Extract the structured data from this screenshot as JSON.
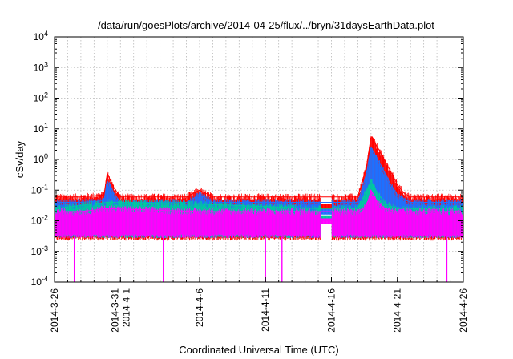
{
  "chart_data": {
    "type": "line",
    "title": "/data/run/goesPlots/archive/2014-04-25/flux/../bryn/31daysEarthData.plot",
    "xlabel": "Coordinated Universal Time (UTC)",
    "ylabel": "cSv/day",
    "yscale": "log",
    "xlim": [
      "2014-03-26",
      "2014-04-26"
    ],
    "ylim": [
      0.0001,
      10000
    ],
    "grid": true,
    "legend": "none",
    "x_ticks": [
      {
        "date": "2014-03-26",
        "lines": [
          "2014-3-26"
        ]
      },
      {
        "date": "2014-03-31",
        "lines": [
          "2014-3-31",
          "2014-4-1"
        ]
      },
      {
        "date": "2014-04-06",
        "lines": [
          "2014-4-6"
        ]
      },
      {
        "date": "2014-04-11",
        "lines": [
          "2014-4-11"
        ]
      },
      {
        "date": "2014-04-16",
        "lines": [
          "2014-4-16"
        ]
      },
      {
        "date": "2014-04-21",
        "lines": [
          "2014-4-21"
        ]
      },
      {
        "date": "2014-04-26",
        "lines": [
          "2014-4-26"
        ]
      }
    ],
    "y_ticks": [
      {
        "value": 0.0001,
        "base": "10",
        "exp": "-4"
      },
      {
        "value": 0.001,
        "base": "10",
        "exp": "-3"
      },
      {
        "value": 0.01,
        "base": "10",
        "exp": "-2"
      },
      {
        "value": 0.1,
        "base": "10",
        "exp": "-1"
      },
      {
        "value": 1,
        "base": "10",
        "exp": "0"
      },
      {
        "value": 10,
        "base": "10",
        "exp": "1"
      },
      {
        "value": 100,
        "base": "10",
        "exp": "2"
      },
      {
        "value": 1000,
        "base": "10",
        "exp": "3"
      },
      {
        "value": 10000,
        "base": "10",
        "exp": "4"
      }
    ],
    "series": [
      {
        "color": "#ff0000",
        "x": [
          "2014-03-26",
          "2014-03-28",
          "2014-03-29 18:00",
          "2014-03-30",
          "2014-03-30 12:00",
          "2014-03-31",
          "2014-04-02",
          "2014-04-05",
          "2014-04-06",
          "2014-04-07",
          "2014-04-09",
          "2014-04-11",
          "2014-04-13",
          "2014-04-15",
          "2014-04-16",
          "2014-04-17",
          "2014-04-18",
          "2014-04-18 16:00",
          "2014-04-19",
          "2014-04-19 12:00",
          "2014-04-20",
          "2014-04-20 12:00",
          "2014-04-21",
          "2014-04-21 12:00",
          "2014-04-22",
          "2014-04-23",
          "2014-04-24",
          "2014-04-25",
          "2014-04-26"
        ],
        "y": [
          0.06,
          0.06,
          0.07,
          0.35,
          0.12,
          0.06,
          0.06,
          0.06,
          0.1,
          0.06,
          0.06,
          0.06,
          0.06,
          0.06,
          0.06,
          0.06,
          0.06,
          0.6,
          5.5,
          2.5,
          1.0,
          0.4,
          0.15,
          0.08,
          0.06,
          0.06,
          0.06,
          0.06,
          0.06
        ]
      },
      {
        "color": "#1e70ff",
        "x": [
          "2014-03-26",
          "2014-03-28",
          "2014-03-29 18:00",
          "2014-03-30",
          "2014-03-30 12:00",
          "2014-03-31",
          "2014-04-02",
          "2014-04-05",
          "2014-04-06",
          "2014-04-07",
          "2014-04-09",
          "2014-04-11",
          "2014-04-13",
          "2014-04-15",
          "2014-04-16",
          "2014-04-17",
          "2014-04-18",
          "2014-04-18 16:00",
          "2014-04-19",
          "2014-04-19 12:00",
          "2014-04-20",
          "2014-04-20 12:00",
          "2014-04-21",
          "2014-04-21 12:00",
          "2014-04-22",
          "2014-04-23",
          "2014-04-24",
          "2014-04-25",
          "2014-04-26"
        ],
        "y": [
          0.04,
          0.04,
          0.045,
          0.2,
          0.08,
          0.04,
          0.04,
          0.04,
          0.07,
          0.04,
          0.04,
          0.04,
          0.04,
          0.04,
          0.04,
          0.04,
          0.04,
          0.35,
          2.5,
          1.0,
          0.4,
          0.15,
          0.07,
          0.05,
          0.04,
          0.04,
          0.04,
          0.04,
          0.04
        ]
      },
      {
        "color": "#00c8a0",
        "x": [
          "2014-03-26",
          "2014-03-30",
          "2014-04-06",
          "2014-04-15",
          "2014-04-16",
          "2014-04-18",
          "2014-04-18 16:00",
          "2014-04-19",
          "2014-04-19 12:00",
          "2014-04-20",
          "2014-04-20 12:00",
          "2014-04-21",
          "2014-04-22",
          "2014-04-26"
        ],
        "y": [
          0.025,
          0.04,
          0.035,
          0.025,
          0.025,
          0.025,
          0.1,
          0.2,
          0.08,
          0.04,
          0.03,
          0.025,
          0.025,
          0.025
        ]
      },
      {
        "color": "#ff00ff",
        "x": [
          "2014-03-26",
          "2014-03-28",
          "2014-03-30",
          "2014-04-06",
          "2014-04-15",
          "2014-04-16",
          "2014-04-18",
          "2014-04-18 16:00",
          "2014-04-19",
          "2014-04-19 12:00",
          "2014-04-20",
          "2014-04-21",
          "2014-04-22",
          "2014-04-26"
        ],
        "y": [
          0.02,
          0.02,
          0.025,
          0.02,
          0.02,
          0.02,
          0.02,
          0.03,
          0.1,
          0.04,
          0.025,
          0.02,
          0.02,
          0.02
        ]
      }
    ]
  }
}
